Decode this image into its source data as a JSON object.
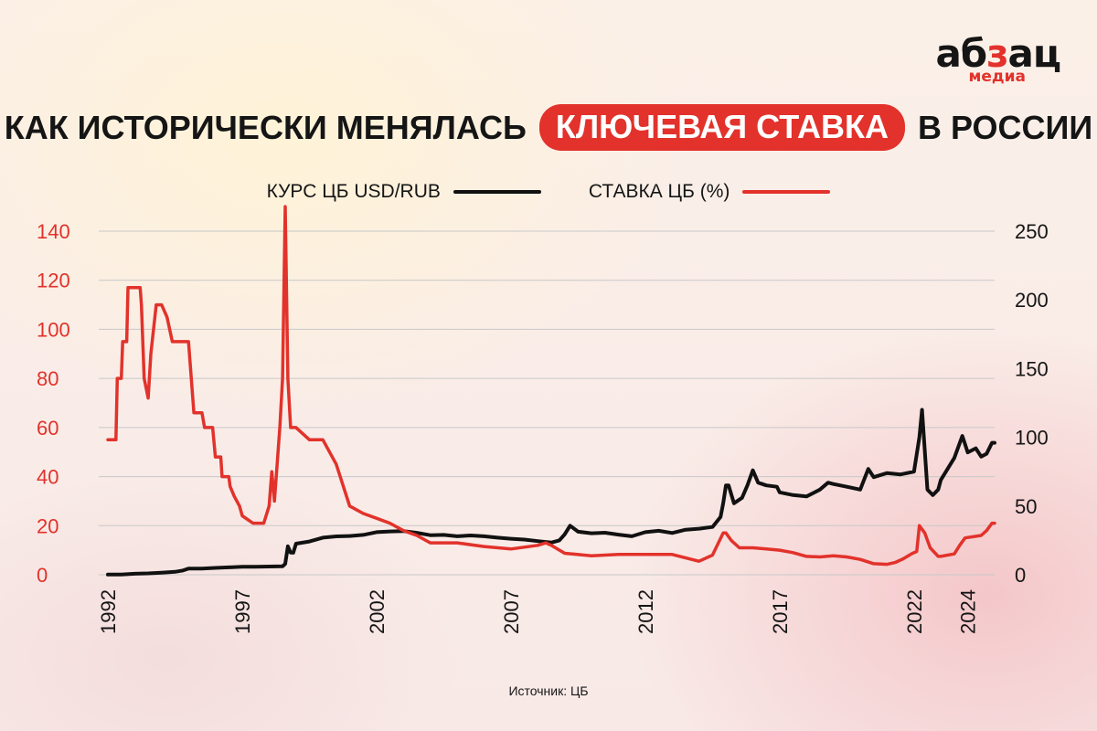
{
  "brand": {
    "part1": "аб",
    "accent": "з",
    "part2": "ац",
    "sub": "медиа"
  },
  "header": {
    "before": "КАК ИСТОРИЧЕСКИ МЕНЯЛАСЬ",
    "highlight": "КЛЮЧЕВАЯ СТАВКА",
    "after": "В РОССИИ"
  },
  "footer": {
    "source": "Источник: ЦБ"
  },
  "colors": {
    "usd": "#111111",
    "rate": "#e2322b",
    "grid": "#c8c8c8",
    "accent": "#e2322b"
  },
  "chart_data": {
    "type": "line",
    "x_ticks": [
      "1992",
      "1997",
      "2002",
      "2007",
      "2012",
      "2017",
      "2022",
      "2024"
    ],
    "y_left": {
      "color": "#e2322b",
      "ticks": [
        "0",
        "20",
        "40",
        "60",
        "80",
        "100",
        "120",
        "140"
      ],
      "range": [
        0,
        140
      ]
    },
    "y_right": {
      "ticks": [
        "0",
        "50",
        "100",
        "150",
        "200",
        "250"
      ],
      "range": [
        0,
        250
      ]
    },
    "grid": true,
    "legend_position": "top-center",
    "series": [
      {
        "name": "КУРС ЦБ USD/RUB",
        "axis": "right",
        "color": "#111111",
        "points": [
          [
            1992.0,
            0.1
          ],
          [
            1992.5,
            0.2
          ],
          [
            1993.0,
            0.7
          ],
          [
            1993.5,
            1.0
          ],
          [
            1994.0,
            1.5
          ],
          [
            1994.5,
            2.1
          ],
          [
            1994.8,
            3.1
          ],
          [
            1995.0,
            4.5
          ],
          [
            1995.5,
            4.5
          ],
          [
            1996.0,
            5.0
          ],
          [
            1996.5,
            5.4
          ],
          [
            1997.0,
            5.8
          ],
          [
            1997.5,
            5.8
          ],
          [
            1998.0,
            6.0
          ],
          [
            1998.5,
            6.2
          ],
          [
            1998.6,
            7.9
          ],
          [
            1998.7,
            20.7
          ],
          [
            1998.8,
            16.1
          ],
          [
            1998.9,
            16.0
          ],
          [
            1999.0,
            22.6
          ],
          [
            1999.5,
            24.2
          ],
          [
            2000.0,
            27.0
          ],
          [
            2000.5,
            27.9
          ],
          [
            2001.0,
            28.2
          ],
          [
            2001.5,
            29.0
          ],
          [
            2002.0,
            31.0
          ],
          [
            2002.5,
            31.5
          ],
          [
            2003.0,
            31.8
          ],
          [
            2003.5,
            30.5
          ],
          [
            2004.0,
            28.8
          ],
          [
            2004.5,
            29.0
          ],
          [
            2005.0,
            28.0
          ],
          [
            2005.5,
            28.6
          ],
          [
            2006.0,
            28.0
          ],
          [
            2006.5,
            27.0
          ],
          [
            2007.0,
            26.2
          ],
          [
            2007.5,
            25.6
          ],
          [
            2008.0,
            24.5
          ],
          [
            2008.5,
            23.4
          ],
          [
            2008.8,
            25.0
          ],
          [
            2009.0,
            29.4
          ],
          [
            2009.2,
            35.7
          ],
          [
            2009.5,
            31.3
          ],
          [
            2010.0,
            30.2
          ],
          [
            2010.5,
            30.6
          ],
          [
            2011.0,
            29.2
          ],
          [
            2011.5,
            28.0
          ],
          [
            2012.0,
            31.0
          ],
          [
            2012.5,
            32.0
          ],
          [
            2013.0,
            30.4
          ],
          [
            2013.5,
            32.8
          ],
          [
            2014.0,
            33.5
          ],
          [
            2014.5,
            34.8
          ],
          [
            2014.8,
            42.0
          ],
          [
            2014.9,
            52.0
          ],
          [
            2015.0,
            65.0
          ],
          [
            2015.1,
            65.0
          ],
          [
            2015.3,
            52.0
          ],
          [
            2015.6,
            56.0
          ],
          [
            2015.8,
            65.0
          ],
          [
            2016.0,
            76.0
          ],
          [
            2016.2,
            67.0
          ],
          [
            2016.5,
            65.0
          ],
          [
            2016.9,
            64.0
          ],
          [
            2017.0,
            60.0
          ],
          [
            2017.5,
            58.0
          ],
          [
            2018.0,
            57.0
          ],
          [
            2018.5,
            62.0
          ],
          [
            2018.8,
            67.0
          ],
          [
            2019.0,
            66.0
          ],
          [
            2019.5,
            64.0
          ],
          [
            2020.0,
            62.0
          ],
          [
            2020.3,
            77.0
          ],
          [
            2020.5,
            71.0
          ],
          [
            2021.0,
            74.0
          ],
          [
            2021.5,
            73.0
          ],
          [
            2022.0,
            75.0
          ],
          [
            2022.2,
            100.0
          ],
          [
            2022.3,
            120.0
          ],
          [
            2022.5,
            62.0
          ],
          [
            2022.7,
            58.0
          ],
          [
            2022.9,
            62.0
          ],
          [
            2023.0,
            69.0
          ],
          [
            2023.5,
            85.0
          ],
          [
            2023.8,
            101.0
          ],
          [
            2024.0,
            89.0
          ],
          [
            2024.3,
            92.0
          ],
          [
            2024.5,
            86.0
          ],
          [
            2024.7,
            88.0
          ],
          [
            2024.9,
            96.0
          ],
          [
            2025.0,
            96.0
          ]
        ]
      },
      {
        "name": "СТАВКА ЦБ (%)",
        "axis": "left",
        "color": "#e2322b",
        "points": [
          [
            1992.0,
            55
          ],
          [
            1992.3,
            55
          ],
          [
            1992.35,
            80
          ],
          [
            1992.5,
            80
          ],
          [
            1992.55,
            95
          ],
          [
            1992.7,
            95
          ],
          [
            1992.75,
            117
          ],
          [
            1993.2,
            117
          ],
          [
            1993.25,
            110
          ],
          [
            1993.35,
            80
          ],
          [
            1993.5,
            72
          ],
          [
            1993.6,
            90
          ],
          [
            1993.8,
            110
          ],
          [
            1994.0,
            110
          ],
          [
            1994.2,
            105
          ],
          [
            1994.4,
            95
          ],
          [
            1995.0,
            95
          ],
          [
            1995.2,
            66
          ],
          [
            1995.5,
            66
          ],
          [
            1995.6,
            60
          ],
          [
            1995.9,
            60
          ],
          [
            1996.0,
            48
          ],
          [
            1996.2,
            48
          ],
          [
            1996.25,
            40
          ],
          [
            1996.5,
            40
          ],
          [
            1996.55,
            36
          ],
          [
            1996.7,
            32
          ],
          [
            1996.9,
            28
          ],
          [
            1997.0,
            24
          ],
          [
            1997.4,
            21
          ],
          [
            1997.8,
            21
          ],
          [
            1998.0,
            28
          ],
          [
            1998.1,
            42
          ],
          [
            1998.2,
            30
          ],
          [
            1998.4,
            60
          ],
          [
            1998.5,
            80
          ],
          [
            1998.6,
            150
          ],
          [
            1998.7,
            80
          ],
          [
            1998.8,
            60
          ],
          [
            1999.0,
            60
          ],
          [
            1999.5,
            55
          ],
          [
            2000.0,
            55
          ],
          [
            2000.5,
            45
          ],
          [
            2001.0,
            28
          ],
          [
            2001.5,
            25
          ],
          [
            2002.0,
            23
          ],
          [
            2002.5,
            21
          ],
          [
            2003.0,
            18
          ],
          [
            2003.5,
            16
          ],
          [
            2004.0,
            13
          ],
          [
            2005.0,
            13
          ],
          [
            2006.0,
            11.5
          ],
          [
            2007.0,
            10.5
          ],
          [
            2008.0,
            12
          ],
          [
            2008.3,
            13
          ],
          [
            2008.5,
            12
          ],
          [
            2009.0,
            8.75
          ],
          [
            2010.0,
            7.75
          ],
          [
            2011.0,
            8.25
          ],
          [
            2012.0,
            8.25
          ],
          [
            2013.0,
            8.25
          ],
          [
            2014.0,
            5.5
          ],
          [
            2014.5,
            8
          ],
          [
            2014.9,
            17
          ],
          [
            2015.0,
            17
          ],
          [
            2015.2,
            14
          ],
          [
            2015.5,
            11
          ],
          [
            2016.0,
            11
          ],
          [
            2016.5,
            10.5
          ],
          [
            2017.0,
            10
          ],
          [
            2017.5,
            9
          ],
          [
            2018.0,
            7.5
          ],
          [
            2018.5,
            7.25
          ],
          [
            2019.0,
            7.75
          ],
          [
            2019.5,
            7.25
          ],
          [
            2020.0,
            6.25
          ],
          [
            2020.5,
            4.5
          ],
          [
            2021.0,
            4.25
          ],
          [
            2021.3,
            5.0
          ],
          [
            2021.6,
            6.5
          ],
          [
            2021.9,
            8.5
          ],
          [
            2022.1,
            9.5
          ],
          [
            2022.2,
            20
          ],
          [
            2022.4,
            17
          ],
          [
            2022.6,
            11
          ],
          [
            2022.9,
            7.5
          ],
          [
            2023.0,
            7.5
          ],
          [
            2023.5,
            8.5
          ],
          [
            2023.7,
            12
          ],
          [
            2023.9,
            15
          ],
          [
            2024.5,
            16
          ],
          [
            2024.7,
            18
          ],
          [
            2024.9,
            21
          ],
          [
            2025.0,
            21
          ]
        ]
      }
    ]
  }
}
